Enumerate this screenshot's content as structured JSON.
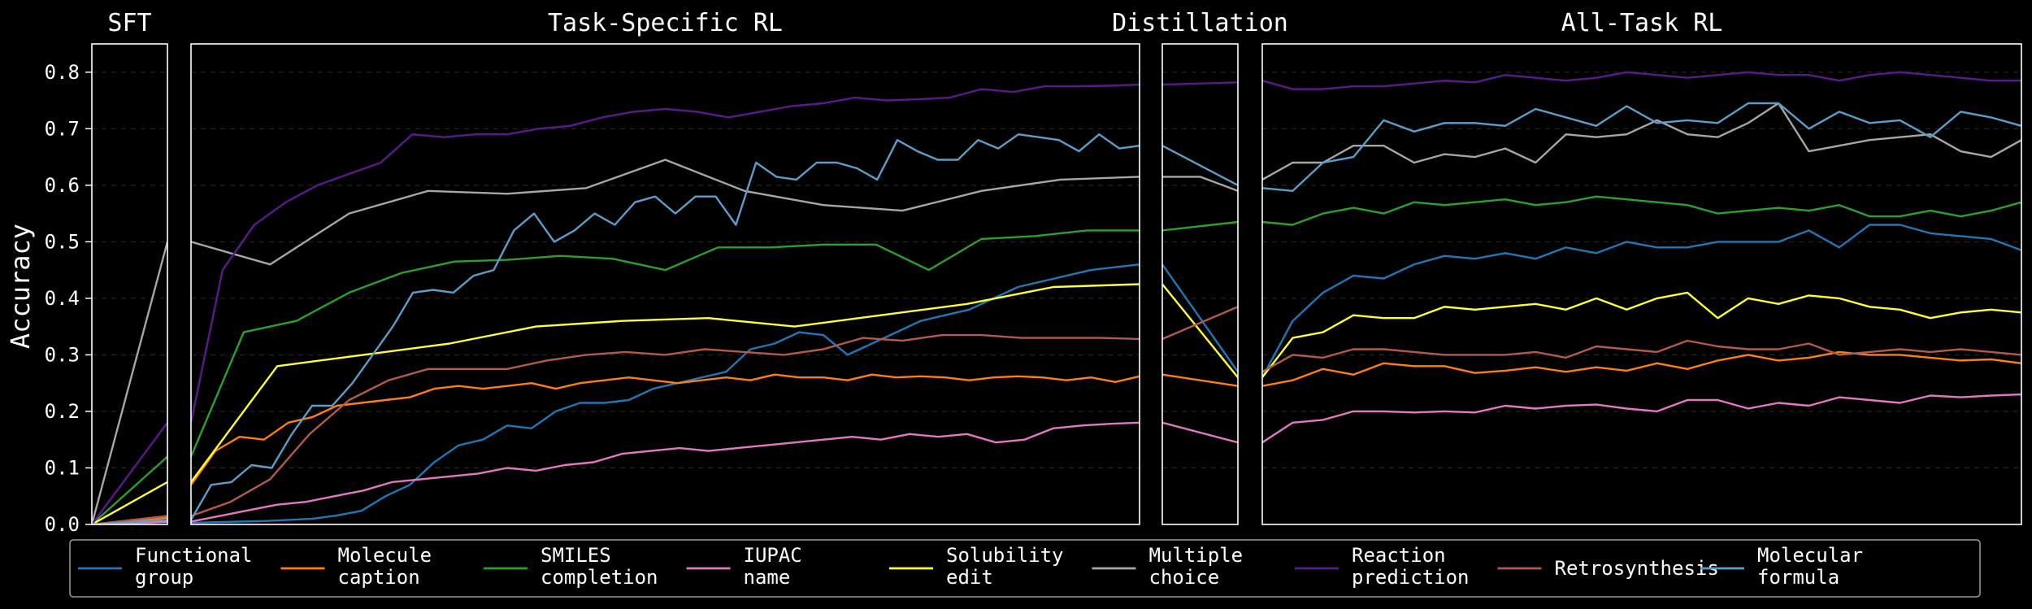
{
  "chart_data": {
    "type": "line",
    "ylabel": "Accuracy",
    "ylim": [
      0,
      0.85
    ],
    "yticks": [
      "0.0",
      "0.1",
      "0.2",
      "0.3",
      "0.4",
      "0.5",
      "0.6",
      "0.7",
      "0.8"
    ],
    "grid": "horizontal-dashed",
    "legend_placement": "bottom",
    "panels": [
      {
        "title": "SFT"
      },
      {
        "title": "Task-Specific RL"
      },
      {
        "title": "Distillation"
      },
      {
        "title": "All-Task RL"
      }
    ],
    "series": [
      {
        "key": "fg",
        "label_line1": "Functional",
        "label_line2": "group",
        "color": "#1f77b4",
        "sft": [
          0,
          0.004
        ],
        "tsrl": [
          0.003,
          0.004,
          0.005,
          0.006,
          0.008,
          0.01,
          0.016,
          0.024,
          0.05,
          0.07,
          0.11,
          0.14,
          0.15,
          0.175,
          0.17,
          0.2,
          0.215,
          0.215,
          0.22,
          0.24,
          0.25,
          0.26,
          0.27,
          0.31,
          0.32,
          0.34,
          0.335,
          0.3,
          0.32,
          0.34,
          0.36,
          0.37,
          0.38,
          0.4,
          0.42,
          0.43,
          0.44,
          0.45,
          0.455,
          0.46
        ],
        "distill": [
          0.46,
          0.27
        ],
        "allrl": [
          0.26,
          0.36,
          0.41,
          0.44,
          0.435,
          0.46,
          0.475,
          0.47,
          0.48,
          0.47,
          0.49,
          0.48,
          0.5,
          0.49,
          0.49,
          0.5,
          0.5,
          0.5,
          0.52,
          0.49,
          0.53,
          0.53,
          0.515,
          0.51,
          0.505,
          0.485
        ]
      },
      {
        "key": "mc",
        "label_line1": "Molecule",
        "label_line2": "caption",
        "color": "#ff7f0e",
        "sft": [
          0,
          0.012
        ],
        "tsrl": [
          0.07,
          0.13,
          0.155,
          0.15,
          0.18,
          0.19,
          0.21,
          0.215,
          0.22,
          0.225,
          0.24,
          0.245,
          0.24,
          0.245,
          0.25,
          0.24,
          0.25,
          0.255,
          0.26,
          0.255,
          0.25,
          0.255,
          0.26,
          0.255,
          0.265,
          0.26,
          0.26,
          0.255,
          0.265,
          0.26,
          0.262,
          0.26,
          0.255,
          0.26,
          0.262,
          0.26,
          0.255,
          0.26,
          0.252,
          0.262
        ],
        "distill": [
          0.265,
          0.245
        ],
        "allrl": [
          0.245,
          0.255,
          0.275,
          0.265,
          0.285,
          0.28,
          0.28,
          0.268,
          0.272,
          0.278,
          0.27,
          0.278,
          0.272,
          0.285,
          0.275,
          0.29,
          0.3,
          0.29,
          0.295,
          0.305,
          0.3,
          0.3,
          0.295,
          0.29,
          0.292,
          0.285
        ]
      },
      {
        "key": "sc",
        "label_line1": "SMILES",
        "label_line2": "completion",
        "color": "#2ca02c",
        "sft": [
          0,
          0.12
        ],
        "tsrl": [
          0.12,
          0.34,
          0.36,
          0.41,
          0.445,
          0.465,
          0.468,
          0.475,
          0.47,
          0.45,
          0.49,
          0.49,
          0.495,
          0.495,
          0.45,
          0.505,
          0.51,
          0.52,
          0.52
        ],
        "distill": [
          0.52,
          0.535
        ],
        "allrl": [
          0.535,
          0.53,
          0.55,
          0.56,
          0.55,
          0.57,
          0.565,
          0.57,
          0.575,
          0.565,
          0.57,
          0.58,
          0.575,
          0.57,
          0.565,
          0.55,
          0.555,
          0.56,
          0.555,
          0.565,
          0.545,
          0.545,
          0.555,
          0.545,
          0.555,
          0.57
        ]
      },
      {
        "key": "iu",
        "label_line1": "IUPAC",
        "label_line2": "name",
        "color": "#e377c2",
        "sft": [
          0,
          0.005
        ],
        "tsrl": [
          0.005,
          0.015,
          0.025,
          0.035,
          0.04,
          0.05,
          0.06,
          0.075,
          0.08,
          0.085,
          0.09,
          0.1,
          0.095,
          0.105,
          0.11,
          0.125,
          0.13,
          0.135,
          0.13,
          0.135,
          0.14,
          0.145,
          0.15,
          0.155,
          0.15,
          0.16,
          0.155,
          0.16,
          0.145,
          0.15,
          0.17,
          0.175,
          0.178,
          0.18
        ],
        "distill": [
          0.18,
          0.145
        ],
        "allrl": [
          0.145,
          0.18,
          0.185,
          0.2,
          0.2,
          0.198,
          0.2,
          0.198,
          0.21,
          0.205,
          0.21,
          0.212,
          0.205,
          0.2,
          0.22,
          0.22,
          0.205,
          0.215,
          0.21,
          0.225,
          0.22,
          0.215,
          0.228,
          0.225,
          0.228,
          0.23
        ]
      },
      {
        "key": "se",
        "label_line1": "Solubility",
        "label_line2": "edit",
        "color": "#ffff33",
        "sft": [
          0,
          0.075
        ],
        "tsrl": [
          0.075,
          0.28,
          0.3,
          0.32,
          0.35,
          0.36,
          0.365,
          0.35,
          0.37,
          0.39,
          0.42,
          0.425
        ],
        "distill": [
          0.425,
          0.26
        ],
        "allrl": [
          0.26,
          0.33,
          0.34,
          0.37,
          0.365,
          0.365,
          0.385,
          0.38,
          0.385,
          0.39,
          0.38,
          0.4,
          0.38,
          0.4,
          0.41,
          0.365,
          0.4,
          0.39,
          0.405,
          0.4,
          0.385,
          0.38,
          0.365,
          0.375,
          0.38,
          0.375
        ]
      },
      {
        "key": "mch",
        "label_line1": "Multiple",
        "label_line2": "choice",
        "color": "#a6a6a6",
        "sft": [
          0,
          0.5
        ],
        "tsrl": [
          0.5,
          0.46,
          0.55,
          0.59,
          0.585,
          0.595,
          0.645,
          0.59,
          0.565,
          0.555,
          0.59,
          0.61,
          0.615
        ],
        "distill": [
          0.615,
          0.615,
          0.59
        ],
        "allrl": [
          0.61,
          0.64,
          0.64,
          0.67,
          0.67,
          0.64,
          0.655,
          0.65,
          0.665,
          0.64,
          0.69,
          0.685,
          0.69,
          0.715,
          0.69,
          0.685,
          0.71,
          0.745,
          0.66,
          0.67,
          0.68,
          0.685,
          0.69,
          0.66,
          0.65,
          0.68
        ]
      },
      {
        "key": "rp",
        "label_line1": "Reaction",
        "label_line2": "prediction",
        "color": "#5b1a8b",
        "sft": [
          0,
          0.18
        ],
        "tsrl": [
          0.18,
          0.45,
          0.53,
          0.57,
          0.6,
          0.62,
          0.64,
          0.69,
          0.685,
          0.69,
          0.69,
          0.7,
          0.705,
          0.72,
          0.73,
          0.735,
          0.73,
          0.72,
          0.73,
          0.74,
          0.745,
          0.755,
          0.75,
          0.752,
          0.755,
          0.77,
          0.765,
          0.775,
          0.775,
          0.776,
          0.778
        ],
        "distill": [
          0.778,
          0.782
        ],
        "allrl": [
          0.785,
          0.77,
          0.77,
          0.775,
          0.775,
          0.78,
          0.785,
          0.782,
          0.795,
          0.79,
          0.785,
          0.79,
          0.8,
          0.795,
          0.79,
          0.795,
          0.8,
          0.795,
          0.795,
          0.785,
          0.795,
          0.8,
          0.795,
          0.79,
          0.785,
          0.785
        ]
      },
      {
        "key": "rs",
        "label_line1": "Retrosynthesis",
        "label_line2": "",
        "color": "#b35a4a",
        "sft": [
          0,
          0.015
        ],
        "tsrl": [
          0.015,
          0.04,
          0.08,
          0.16,
          0.22,
          0.255,
          0.275,
          0.275,
          0.275,
          0.29,
          0.3,
          0.305,
          0.3,
          0.31,
          0.305,
          0.3,
          0.31,
          0.33,
          0.325,
          0.335,
          0.335,
          0.33,
          0.33,
          0.33,
          0.328
        ],
        "distill": [
          0.328,
          0.385
        ],
        "allrl": [
          0.27,
          0.3,
          0.295,
          0.31,
          0.31,
          0.305,
          0.3,
          0.3,
          0.3,
          0.305,
          0.295,
          0.315,
          0.31,
          0.305,
          0.325,
          0.315,
          0.31,
          0.31,
          0.32,
          0.3,
          0.305,
          0.31,
          0.305,
          0.31,
          0.305,
          0.3
        ]
      },
      {
        "key": "mf",
        "label_line1": "Molecular",
        "label_line2": "formula",
        "color": "#5a9ec9",
        "sft": [
          0,
          0.008
        ],
        "tsrl": [
          0.008,
          0.07,
          0.075,
          0.105,
          0.1,
          0.16,
          0.21,
          0.21,
          0.25,
          0.3,
          0.35,
          0.41,
          0.415,
          0.41,
          0.44,
          0.45,
          0.52,
          0.55,
          0.5,
          0.52,
          0.55,
          0.53,
          0.57,
          0.58,
          0.55,
          0.58,
          0.58,
          0.53,
          0.64,
          0.615,
          0.61,
          0.64,
          0.64,
          0.63,
          0.61,
          0.68,
          0.66,
          0.645,
          0.645,
          0.68,
          0.665,
          0.69,
          0.685,
          0.68,
          0.66,
          0.69,
          0.665,
          0.67
        ],
        "distill": [
          0.67,
          0.6
        ],
        "allrl": [
          0.595,
          0.59,
          0.64,
          0.65,
          0.715,
          0.695,
          0.71,
          0.71,
          0.705,
          0.735,
          0.72,
          0.705,
          0.74,
          0.71,
          0.715,
          0.71,
          0.745,
          0.745,
          0.7,
          0.73,
          0.71,
          0.715,
          0.685,
          0.73,
          0.72,
          0.705
        ]
      }
    ]
  }
}
